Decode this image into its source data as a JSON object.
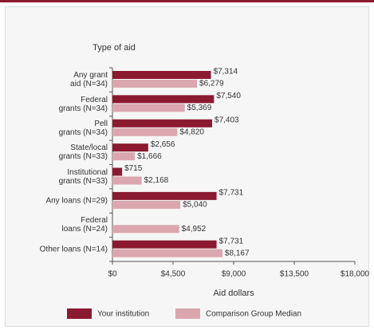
{
  "chart_data": {
    "type": "bar",
    "orientation": "horizontal",
    "title": "Type of aid",
    "xlabel": "Aid dollars",
    "categories": [
      "Any grant\naid (N=34)",
      "Federal\ngrants (N=34)",
      "Pell\ngrants (N=34)",
      "State/local\ngrants (N=33)",
      "Institutional\ngrants (N=33)",
      "Any loans (N=29)",
      "Federal\nloans (N=24)",
      "Other loans (N=14)"
    ],
    "series": [
      {
        "name": "Your institution",
        "color": "#8b1a30",
        "values": [
          7314,
          7540,
          7403,
          2656,
          715,
          7731,
          null,
          7731
        ],
        "value_labels": [
          "$7,314",
          "$7,540",
          "$7,403",
          "$2,656",
          "$715",
          "$7,731",
          null,
          "$7,731"
        ]
      },
      {
        "name": "Comparison Group Median",
        "color": "#dba7ae",
        "values": [
          6279,
          5369,
          4820,
          1666,
          2168,
          5040,
          4952,
          8167
        ],
        "value_labels": [
          "$6,279",
          "$5,369",
          "$4,820",
          "$1,666",
          "$2,168",
          "$5,040",
          "$4,952",
          "$8,167"
        ]
      }
    ],
    "xlim": [
      0,
      18000
    ],
    "xticks": [
      {
        "value": 0,
        "label": "$0"
      },
      {
        "value": 4500,
        "label": "$4,500"
      },
      {
        "value": 9000,
        "label": "$9,000"
      },
      {
        "value": 13500,
        "label": "$13,500"
      },
      {
        "value": 18000,
        "label": "$18,000"
      }
    ],
    "grid": false
  }
}
